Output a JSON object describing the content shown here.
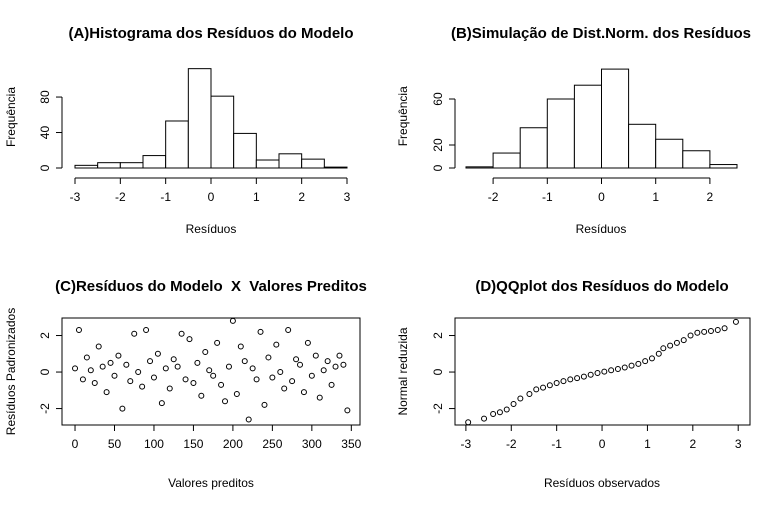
{
  "chart_data": [
    {
      "type": "histogram",
      "title": "(A)Histograma dos Resíduos do Modelo",
      "x_label": "Resíduos",
      "y_label": "Frequência",
      "bins": [
        -3,
        -2.5,
        -2,
        -1.5,
        -1,
        -0.5,
        0,
        0.5,
        1,
        1.5,
        2,
        2.5,
        3
      ],
      "counts": [
        3,
        6,
        6,
        14,
        53,
        112,
        81,
        39,
        9,
        16,
        10,
        1
      ],
      "xlim": [
        -3,
        3
      ],
      "ylim": [
        0,
        115
      ],
      "xticks": [
        -3,
        -2,
        -1,
        0,
        1,
        2,
        3
      ],
      "yticks": [
        0,
        40,
        80
      ]
    },
    {
      "type": "histogram",
      "title": "(B)Simulação de Dist.Norm. dos Resíduos",
      "x_label": "Resíduos",
      "y_label": "Frequência",
      "bins": [
        -2.5,
        -2,
        -1.5,
        -1,
        -0.5,
        0,
        0.5,
        1,
        1.5,
        2,
        2.5
      ],
      "counts": [
        1,
        13,
        35,
        60,
        72,
        86,
        38,
        25,
        15,
        3
      ],
      "xlim": [
        -2.5,
        2.5
      ],
      "ylim": [
        0,
        90
      ],
      "xticks": [
        -2,
        -1,
        0,
        1,
        2
      ],
      "yticks": [
        0,
        20,
        60
      ]
    },
    {
      "type": "scatter",
      "title": "(C)Resíduos do Modelo  X  Valores Preditos",
      "x_label": "Valores preditos",
      "y_label": "Resíduos Padronizados",
      "x": [
        0,
        5,
        10,
        15,
        20,
        25,
        30,
        35,
        40,
        45,
        50,
        55,
        60,
        65,
        70,
        75,
        80,
        85,
        90,
        95,
        100,
        105,
        110,
        115,
        120,
        125,
        130,
        135,
        140,
        145,
        150,
        155,
        160,
        165,
        170,
        175,
        180,
        185,
        190,
        195,
        200,
        205,
        210,
        215,
        220,
        225,
        230,
        235,
        240,
        245,
        250,
        255,
        260,
        265,
        270,
        275,
        280,
        285,
        290,
        295,
        300,
        305,
        310,
        315,
        320,
        325,
        330,
        335,
        340,
        345
      ],
      "values": [
        0.2,
        2.3,
        -0.4,
        0.8,
        0.1,
        -0.6,
        1.4,
        0.3,
        -1.1,
        0.5,
        -0.2,
        0.9,
        -2.0,
        0.4,
        -0.5,
        2.1,
        0.0,
        -0.8,
        2.3,
        0.6,
        -0.3,
        1.0,
        -1.7,
        0.2,
        -0.9,
        0.7,
        0.3,
        2.1,
        -0.4,
        1.8,
        -0.6,
        0.5,
        -1.3,
        1.1,
        0.1,
        -0.2,
        1.6,
        -0.7,
        -1.6,
        0.3,
        2.8,
        -1.2,
        1.4,
        0.6,
        -2.6,
        0.2,
        -0.4,
        2.2,
        -1.8,
        0.8,
        -0.3,
        1.5,
        0.0,
        -0.9,
        2.3,
        -0.5,
        0.7,
        0.4,
        -1.1,
        1.6,
        -0.2,
        0.9,
        -1.4,
        0.1,
        0.6,
        -0.7,
        0.3,
        0.9,
        0.4,
        -2.1
      ],
      "xlim": [
        -16.5,
        361
      ],
      "ylim": [
        -2.9,
        2.96
      ],
      "xticks": [
        0,
        50,
        100,
        150,
        200,
        250,
        300,
        350
      ],
      "yticks": [
        -2,
        0,
        2
      ]
    },
    {
      "type": "scatter",
      "title": "(D)QQplot dos Resíduos do Modelo",
      "x_label": "Resíduos observados",
      "y_label": "Normal reduzida",
      "x": [
        -2.95,
        -2.6,
        -2.4,
        -2.25,
        -2.1,
        -1.95,
        -1.8,
        -1.6,
        -1.45,
        -1.3,
        -1.15,
        -1.0,
        -0.85,
        -0.7,
        -0.55,
        -0.4,
        -0.25,
        -0.1,
        0.05,
        0.2,
        0.35,
        0.5,
        0.65,
        0.8,
        0.95,
        1.1,
        1.25,
        1.35,
        1.5,
        1.65,
        1.8,
        1.95,
        2.1,
        2.25,
        2.4,
        2.55,
        2.7,
        2.95
      ],
      "values": [
        -2.75,
        -2.55,
        -2.3,
        -2.2,
        -2.05,
        -1.75,
        -1.45,
        -1.2,
        -0.95,
        -0.85,
        -0.72,
        -0.6,
        -0.5,
        -0.4,
        -0.33,
        -0.25,
        -0.15,
        -0.05,
        0.02,
        0.1,
        0.17,
        0.25,
        0.35,
        0.45,
        0.6,
        0.75,
        1.0,
        1.3,
        1.45,
        1.6,
        1.75,
        2.0,
        2.15,
        2.2,
        2.25,
        2.3,
        2.4,
        2.75
      ],
      "xlim": [
        -3.24,
        3.26
      ],
      "ylim": [
        -2.9,
        2.96
      ],
      "xticks": [
        -3,
        -2,
        -1,
        0,
        1,
        2,
        3
      ],
      "yticks": [
        -2,
        0,
        2
      ]
    }
  ]
}
